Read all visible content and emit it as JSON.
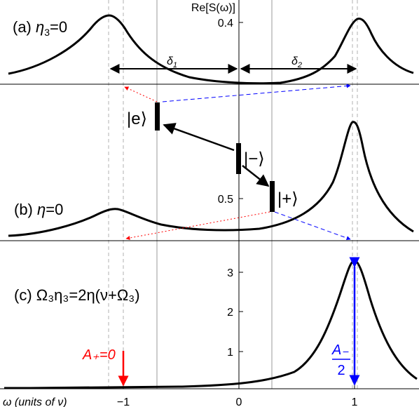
{
  "chart_data": [
    {
      "panel": "a",
      "type": "line",
      "label_prefix": "(a) ",
      "label_var": "η",
      "label_sub": "3",
      "label_suffix": "=0",
      "ylabel": "Re[S(ω)]",
      "yticks": [
        0.4
      ],
      "ylim": [
        0.0,
        0.45
      ],
      "annotations": [
        {
          "text": "δ",
          "sub": "1"
        },
        {
          "text": "δ",
          "sub": "2"
        }
      ]
    },
    {
      "panel": "b",
      "type": "line",
      "label_prefix": "(b) ",
      "label_var": "η",
      "label_sub": "",
      "label_suffix": "=0",
      "yticks": [
        0.5
      ],
      "ylim": [
        0.0,
        1.0
      ]
    },
    {
      "panel": "c",
      "type": "line",
      "label_text": "(c) Ω₃η₃=2η(ν+Ω₃)",
      "yticks": [
        1,
        2,
        3
      ],
      "ylim": [
        0,
        3.5
      ],
      "annotations": [
        {
          "text": "A₊=0",
          "color": "#ff0000",
          "x": -1
        },
        {
          "text": "A₋",
          "denominator": "2",
          "color": "#0000ff",
          "x": 1,
          "value": 3.3
        }
      ]
    }
  ],
  "xaxis": {
    "label": "ω (units of ν)",
    "ticks": [
      "−1",
      "0",
      "1"
    ],
    "tick_values": [
      -1,
      0,
      1
    ],
    "xlim": [
      -1.85,
      1.55
    ]
  },
  "states": [
    {
      "label": "|e⟩"
    },
    {
      "label": "|−⟩"
    },
    {
      "label": "|+⟩"
    }
  ],
  "colors": {
    "curve": "#000000",
    "plus_peak": "#ff0000",
    "minus_peak": "#0000ff"
  }
}
